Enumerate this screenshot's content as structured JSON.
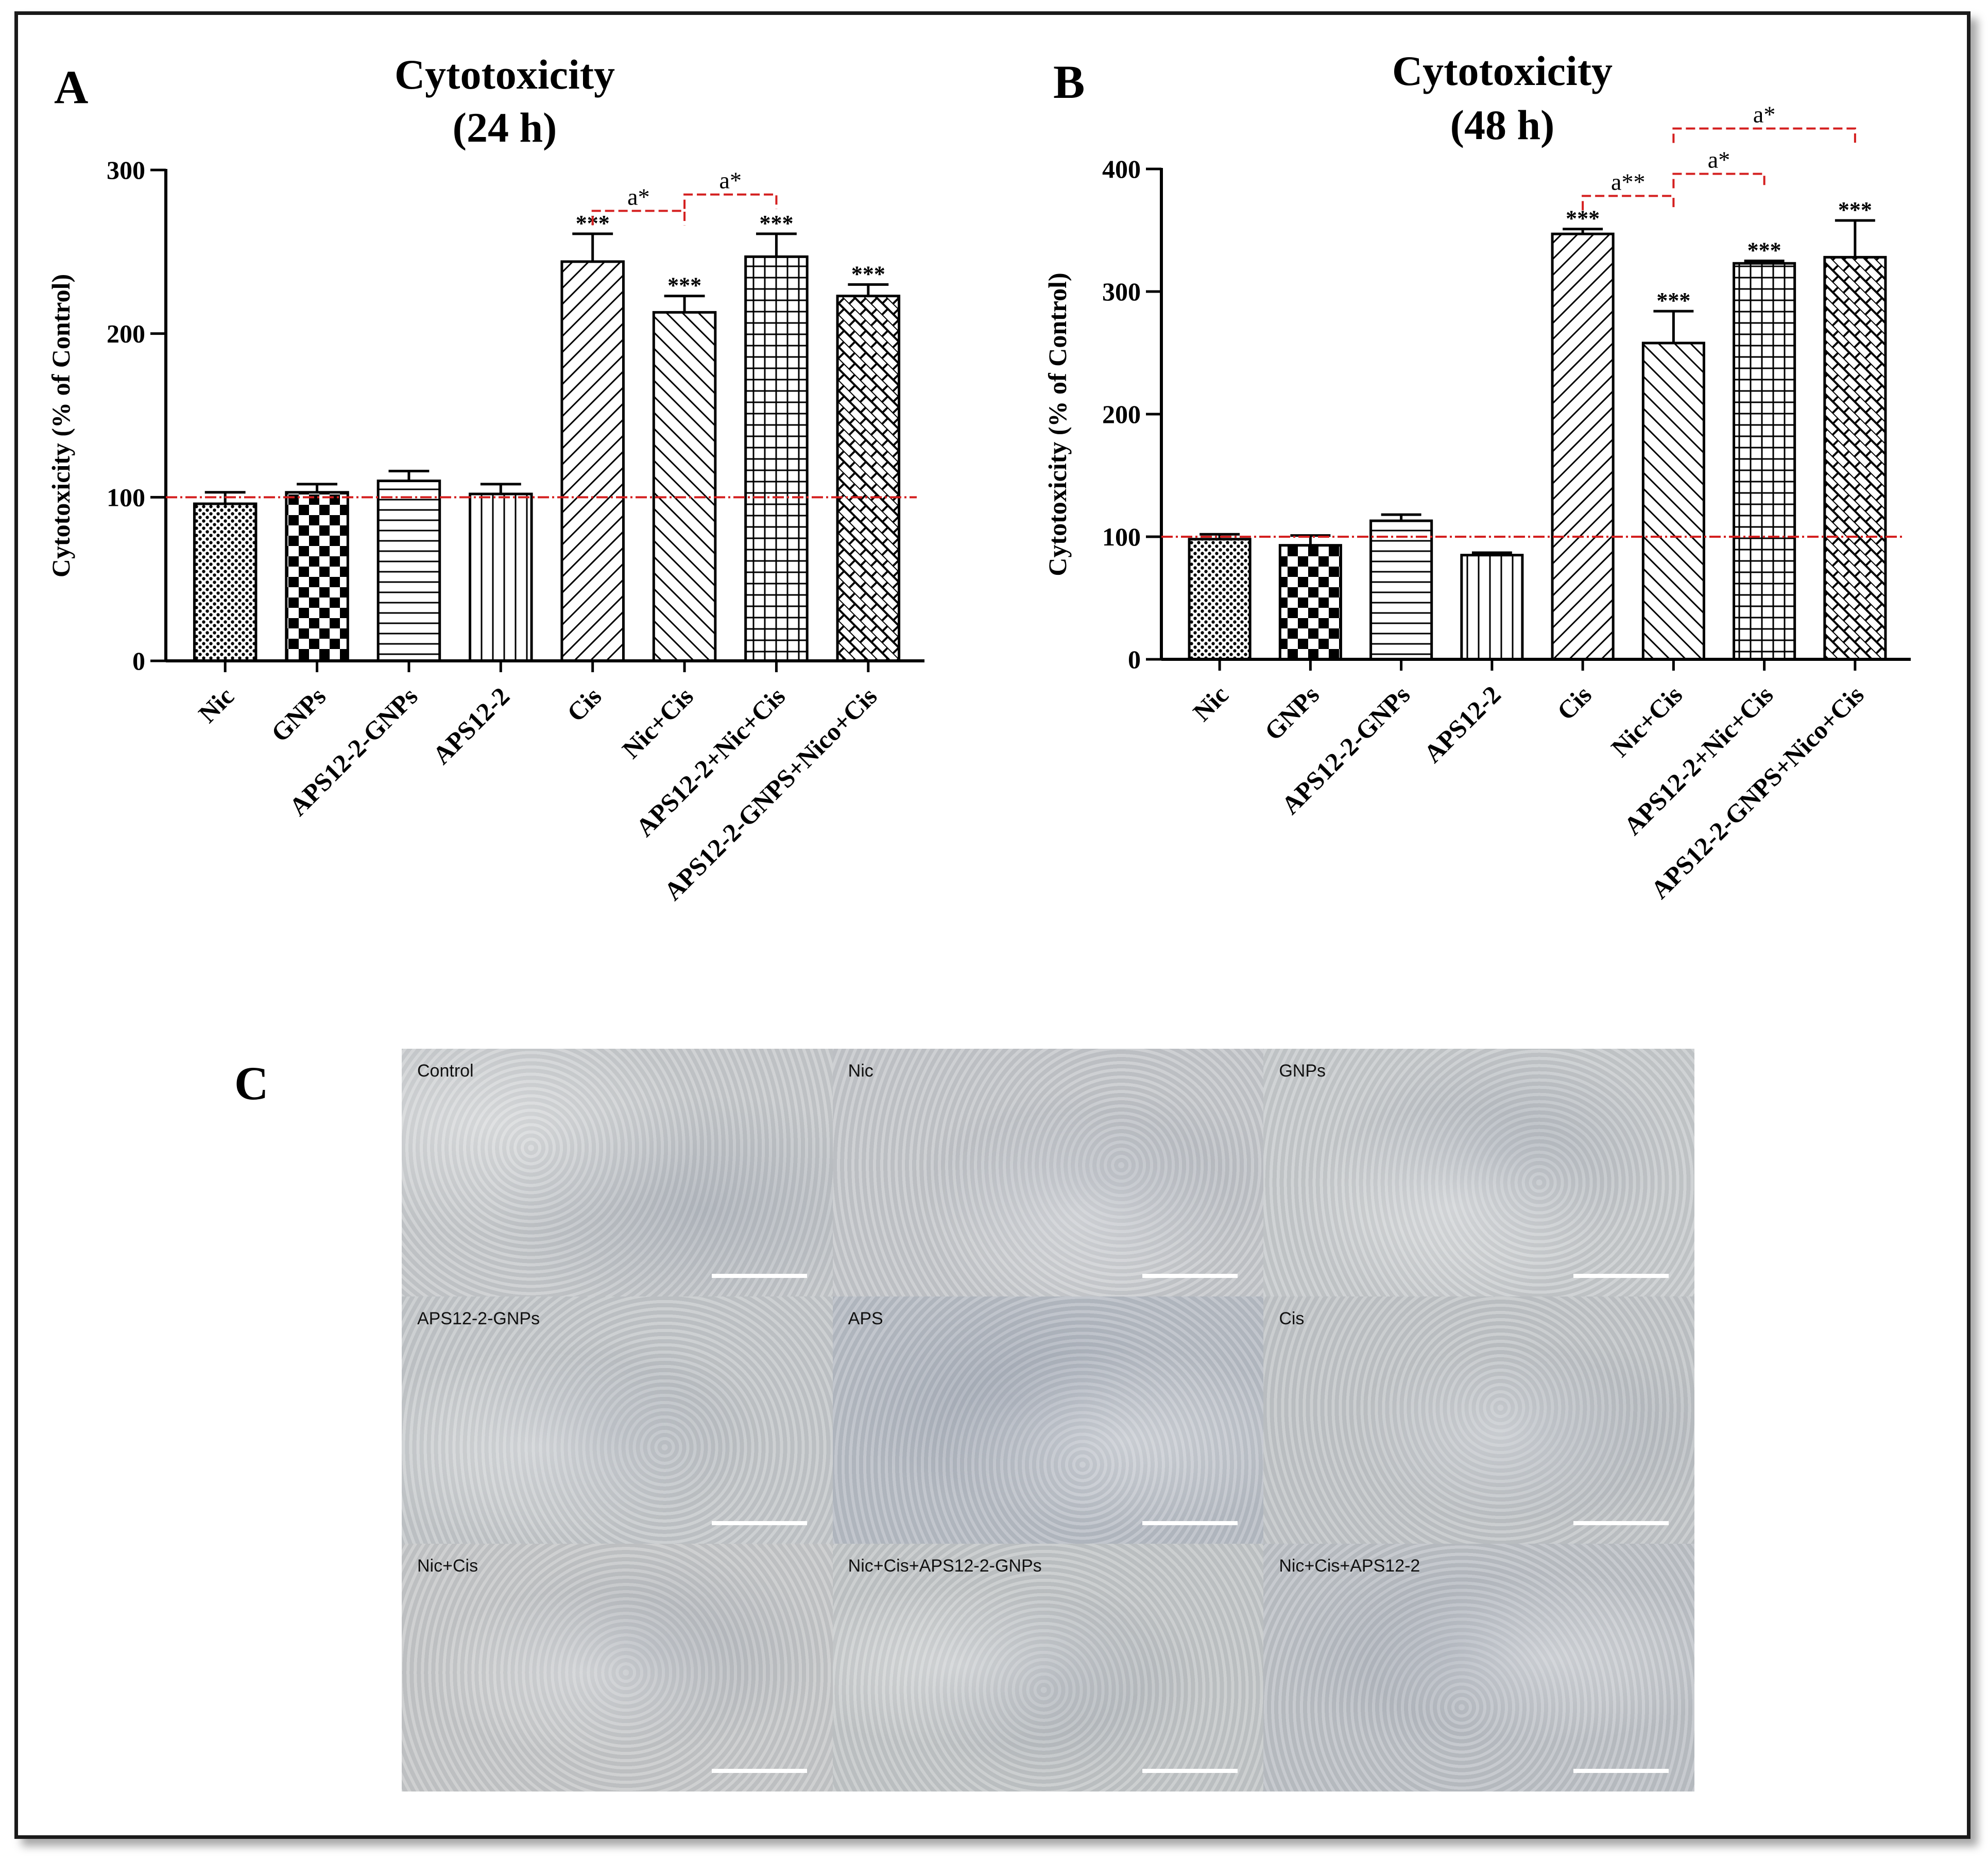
{
  "chart_data": [
    {
      "type": "bar",
      "panel": "A",
      "title": [
        "Cytotoxicity",
        "(24 h)"
      ],
      "ylabel": "Cytotoxicity (% of Control)",
      "ylim": [
        0,
        300
      ],
      "yticks": [
        0,
        100,
        200,
        300
      ],
      "categories": [
        "Nic",
        "GNPs",
        "APS12-2-GNPs",
        "APS12-2",
        "Cis",
        "Nic+Cis",
        "APS12-2+Nic+Cis",
        "APS12-2-GNPS+Nico+Cis"
      ],
      "values": [
        96,
        103,
        110,
        102,
        244,
        213,
        247,
        223
      ],
      "errors": [
        7,
        5,
        6,
        6,
        17,
        10,
        14,
        7
      ],
      "annotations": [
        "",
        "",
        "",
        "",
        "***",
        "***",
        "***",
        "***"
      ],
      "reference_line": 100,
      "patterns": [
        "dots",
        "checker",
        "hlines",
        "vlines",
        "diag-up",
        "diag-down",
        "grid",
        "brick"
      ],
      "comparisons": [
        {
          "from": 4,
          "to": 5,
          "label": "a*",
          "level": 275
        },
        {
          "from": 5,
          "to": 6,
          "label": "a*",
          "level": 285
        }
      ]
    },
    {
      "type": "bar",
      "panel": "B",
      "title": [
        "Cytotoxicity",
        "(48 h)"
      ],
      "ylabel": "Cytotoxicity (% of Control)",
      "ylim": [
        0,
        400
      ],
      "yticks": [
        0,
        100,
        200,
        300,
        400
      ],
      "categories": [
        "Nic",
        "GNPs",
        "APS12-2-GNPs",
        "APS12-2",
        "Cis",
        "Nic+Cis",
        "APS12-2+Nic+Cis",
        "APS12-2-GNPS+Nico+Cis"
      ],
      "values": [
        98,
        93,
        113,
        85,
        347,
        258,
        323,
        328
      ],
      "errors": [
        4,
        8,
        5,
        2,
        4,
        26,
        2,
        30
      ],
      "annotations": [
        "",
        "",
        "",
        "",
        "***",
        "***",
        "***",
        "***"
      ],
      "reference_line": 100,
      "patterns": [
        "dots",
        "checker",
        "hlines",
        "vlines",
        "diag-up",
        "diag-down",
        "grid",
        "brick"
      ],
      "comparisons": [
        {
          "from": 4,
          "to": 5,
          "label": "a**",
          "level": 378
        },
        {
          "from": 5,
          "to": 6,
          "label": "a*",
          "level": 396
        },
        {
          "from": 5,
          "to": 7,
          "label": "a*",
          "level": 433
        }
      ]
    }
  ],
  "micrograph": {
    "panel": "C",
    "tiles": [
      {
        "label": "Control",
        "tone": "#c9ccce"
      },
      {
        "label": "Nic",
        "tone": "#c7cacd"
      },
      {
        "label": "GNPs",
        "tone": "#cacdcf"
      },
      {
        "label": "APS12-2-GNPs",
        "tone": "#c6c9cc"
      },
      {
        "label": "APS",
        "tone": "#b9bec6"
      },
      {
        "label": "Cis",
        "tone": "#c4c7c9"
      },
      {
        "label": "Nic+Cis",
        "tone": "#c8cacb"
      },
      {
        "label": "Nic+Cis+APS12-2-GNPs",
        "tone": "#c5c8ca"
      },
      {
        "label": "Nic+Cis+APS12-2",
        "tone": "#bfc3c8"
      }
    ]
  },
  "colors": {
    "reference_line": "#d41f1f",
    "comparison": "#d41f1f",
    "axis": "#000000"
  }
}
